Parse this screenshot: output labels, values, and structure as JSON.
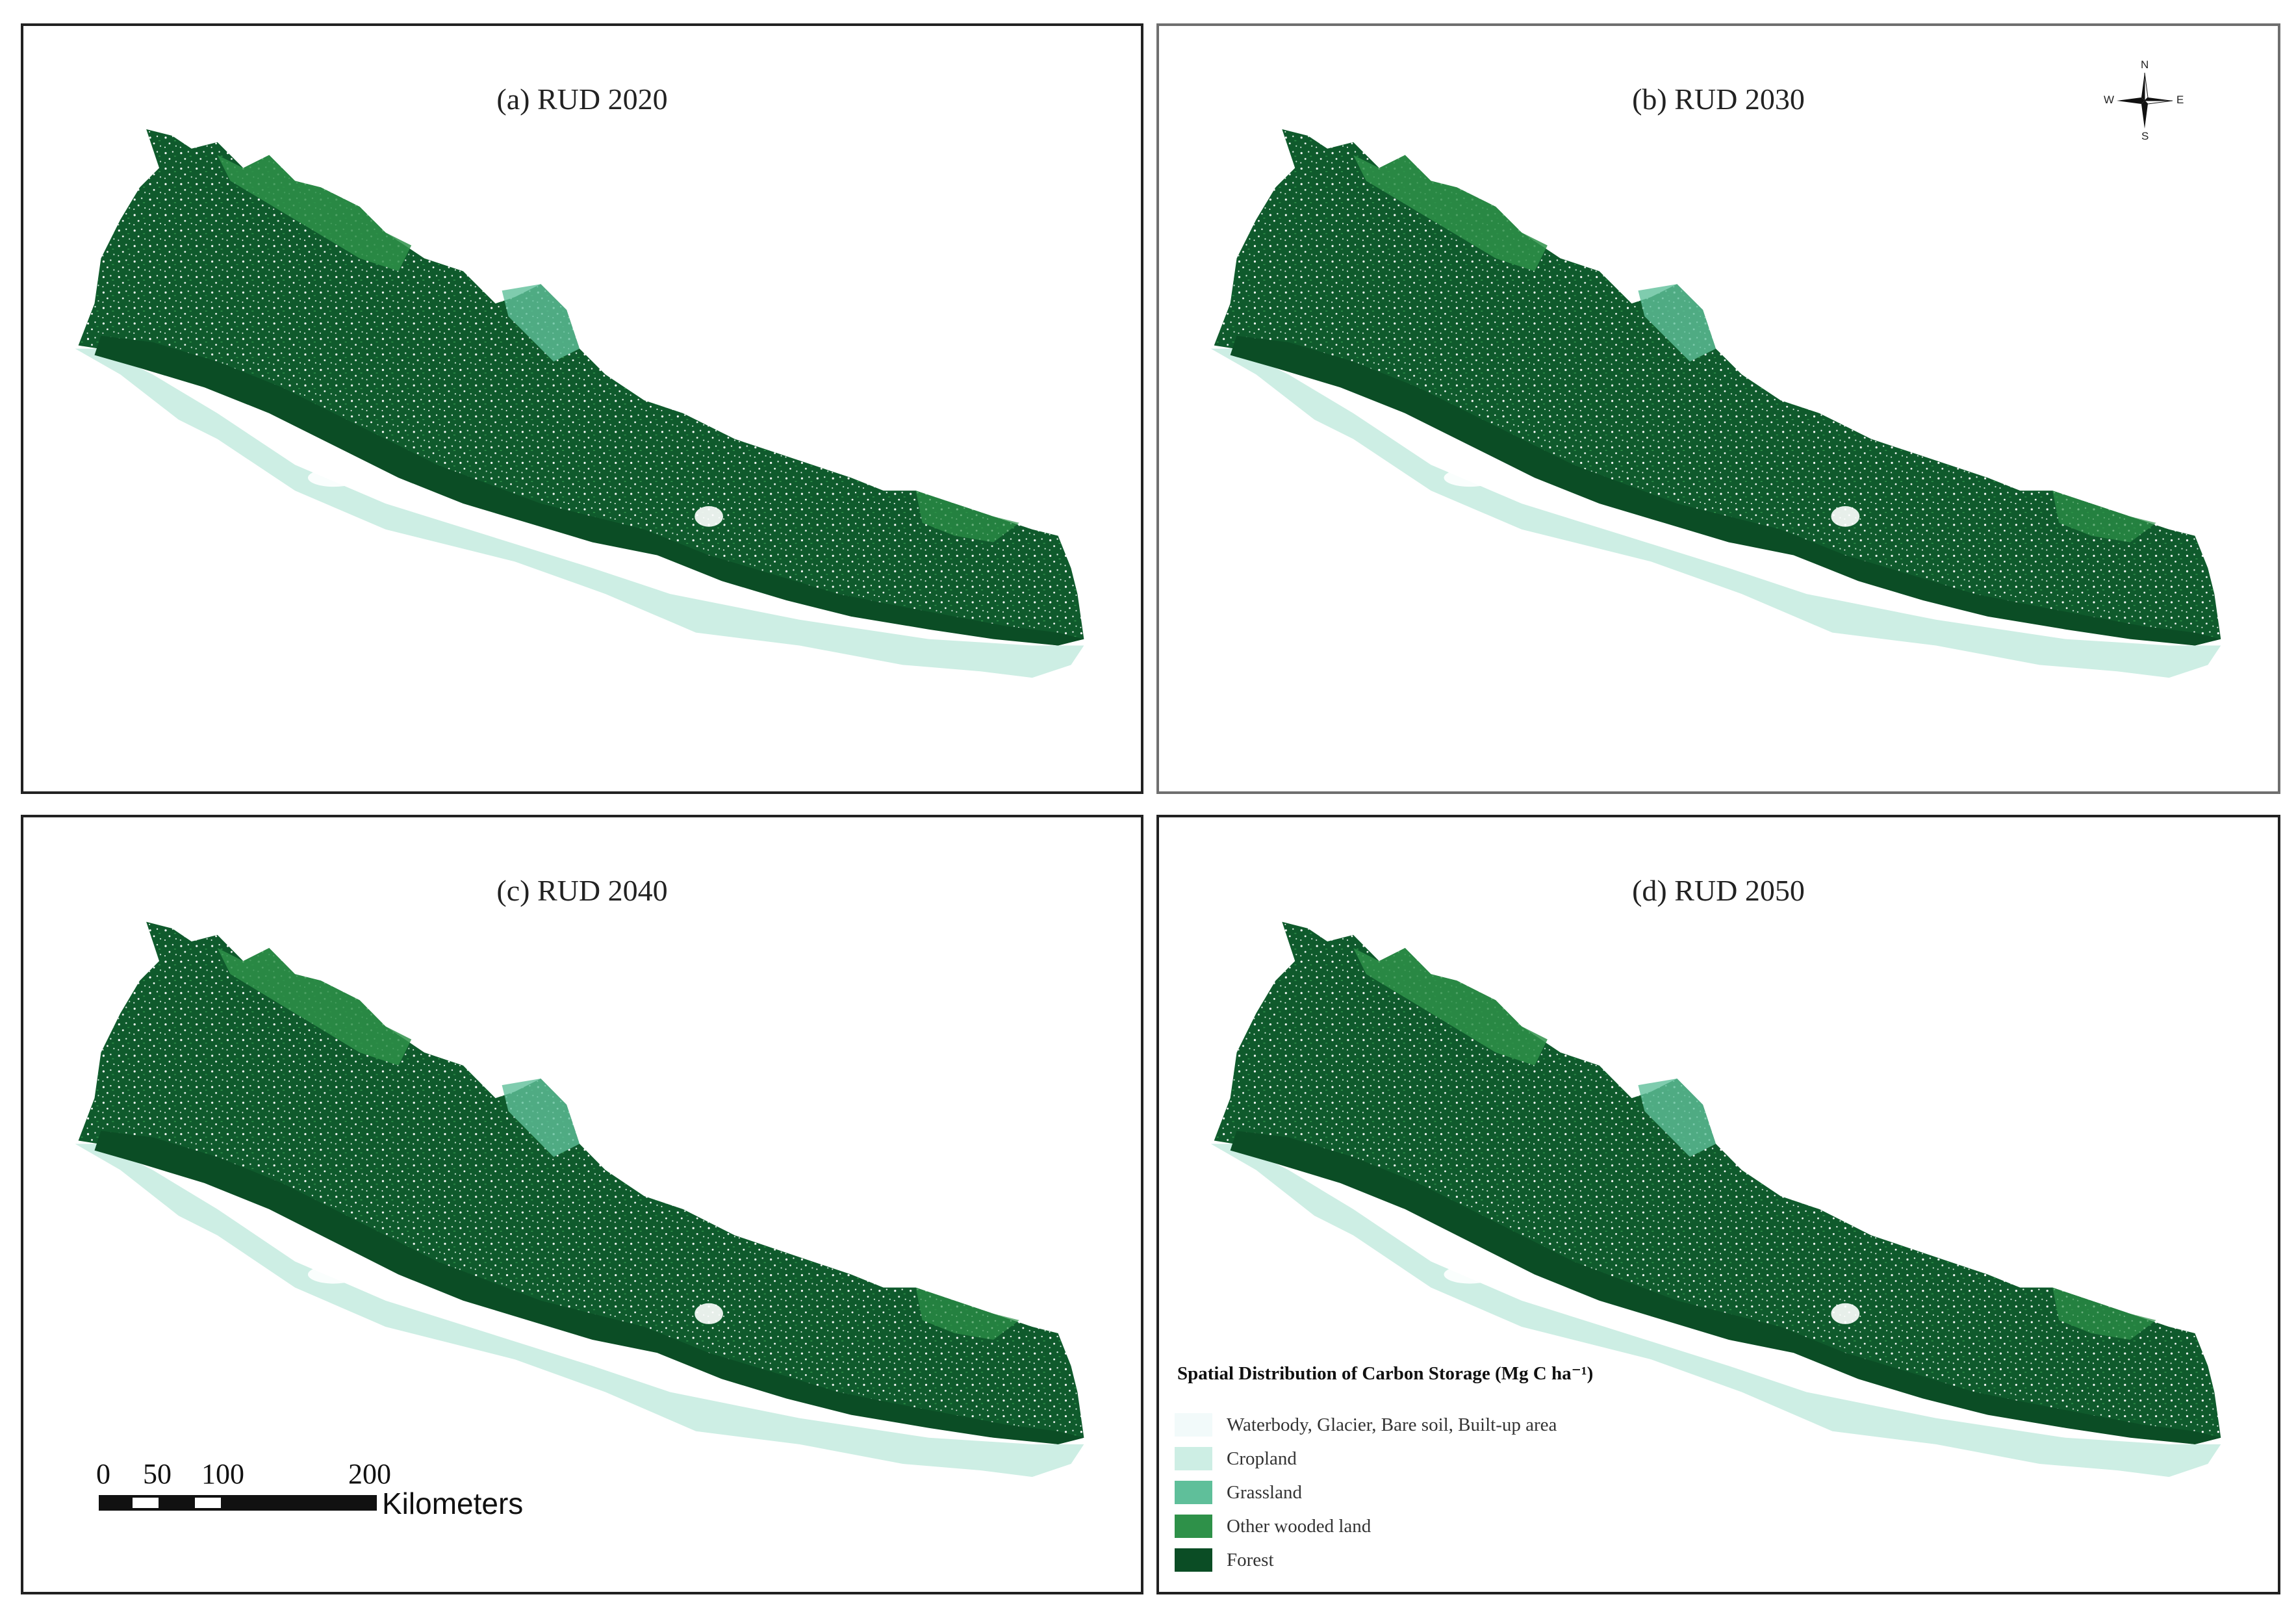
{
  "panels": [
    {
      "title": "(a) RUD 2020"
    },
    {
      "title": "(b) RUD 2030"
    },
    {
      "title": "(c) RUD 2040"
    },
    {
      "title": "(d) RUD 2050"
    }
  ],
  "compass": {
    "n": "N",
    "s": "S",
    "e": "E",
    "w": "W"
  },
  "scale_bar": {
    "ticks": [
      "0",
      "50",
      "100",
      "200"
    ],
    "unit": "Kilometers"
  },
  "legend": {
    "title": "Spatial Distribution of Carbon Storage (Mg C ha⁻¹)",
    "items": [
      {
        "label": "Waterbody, Glacier, Bare soil, Built-up area",
        "color": "#f2fafa"
      },
      {
        "label": "Cropland",
        "color": "#cdeee4"
      },
      {
        "label": "Grassland",
        "color": "#5fbf9a"
      },
      {
        "label": "Other wooded land",
        "color": "#2e9149"
      },
      {
        "label": "Forest",
        "color": "#0b4d25"
      }
    ]
  }
}
